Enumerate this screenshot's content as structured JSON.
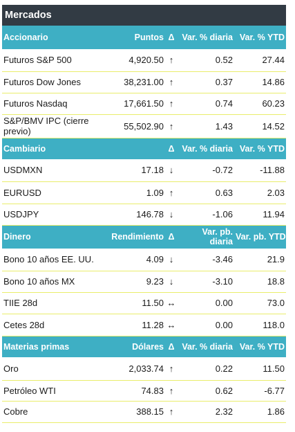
{
  "title": "Mercados",
  "sections": [
    {
      "header": {
        "c1": "Accionario",
        "c2": "Puntos",
        "c3": "Δ",
        "c4": "Var. % diaria",
        "c5": "Var. % YTD"
      },
      "rows": [
        {
          "name": "Futuros S&P 500",
          "value": "4,920.50",
          "arrow": "↑",
          "daily": "0.52",
          "ytd": "27.44"
        },
        {
          "name": "Futuros Dow Jones",
          "value": "38,231.00",
          "arrow": "↑",
          "daily": "0.37",
          "ytd": "14.86"
        },
        {
          "name": "Futuros Nasdaq",
          "value": "17,661.50",
          "arrow": "↑",
          "daily": "0.74",
          "ytd": "60.23"
        },
        {
          "name": "S&P/BMV IPC (cierre previo)",
          "value": "55,502.90",
          "arrow": "↑",
          "daily": "1.43",
          "ytd": "14.52"
        }
      ]
    },
    {
      "header": {
        "c1": "Cambiario",
        "c2": "",
        "c3": "Δ",
        "c4": "Var. % diaria",
        "c5": "Var. % YTD"
      },
      "rows": [
        {
          "name": "USDMXN",
          "value": "17.18",
          "arrow": "↓",
          "daily": "-0.72",
          "ytd": "-11.88"
        },
        {
          "name": "EURUSD",
          "value": "1.09",
          "arrow": "↑",
          "daily": "0.63",
          "ytd": "2.03"
        },
        {
          "name": "USDJPY",
          "value": "146.78",
          "arrow": "↓",
          "daily": "-1.06",
          "ytd": "11.94"
        }
      ]
    },
    {
      "header": {
        "c1": "Dinero",
        "c2": "Rendimiento",
        "c3": "Δ",
        "c4": "Var. pb. diaria",
        "c5": "Var. pb. YTD"
      },
      "rows": [
        {
          "name": "Bono 10 años EE. UU.",
          "value": "4.09",
          "arrow": "↓",
          "daily": "-3.46",
          "ytd": "21.9"
        },
        {
          "name": "Bono 10 años MX",
          "value": "9.23",
          "arrow": "↓",
          "daily": "-3.10",
          "ytd": "18.8"
        },
        {
          "name": "TIIE 28d",
          "value": "11.50",
          "arrow": "↔",
          "daily": "0.00",
          "ytd": "73.0"
        },
        {
          "name": "Cetes 28d",
          "value": "11.28",
          "arrow": "↔",
          "daily": "0.00",
          "ytd": "118.0"
        }
      ]
    },
    {
      "header": {
        "c1": "Materias primas",
        "c2": "Dólares",
        "c3": "Δ",
        "c4": "Var. % diaria",
        "c5": "Var. % YTD"
      },
      "rows": [
        {
          "name": "Oro",
          "value": "2,033.74",
          "arrow": "↑",
          "daily": "0.22",
          "ytd": "11.50"
        },
        {
          "name": "Petróleo WTI",
          "value": "74.83",
          "arrow": "↑",
          "daily": "0.62",
          "ytd": "-6.77"
        },
        {
          "name": "Cobre",
          "value": "388.15",
          "arrow": "↑",
          "daily": "2.32",
          "ytd": "1.86"
        }
      ]
    }
  ]
}
